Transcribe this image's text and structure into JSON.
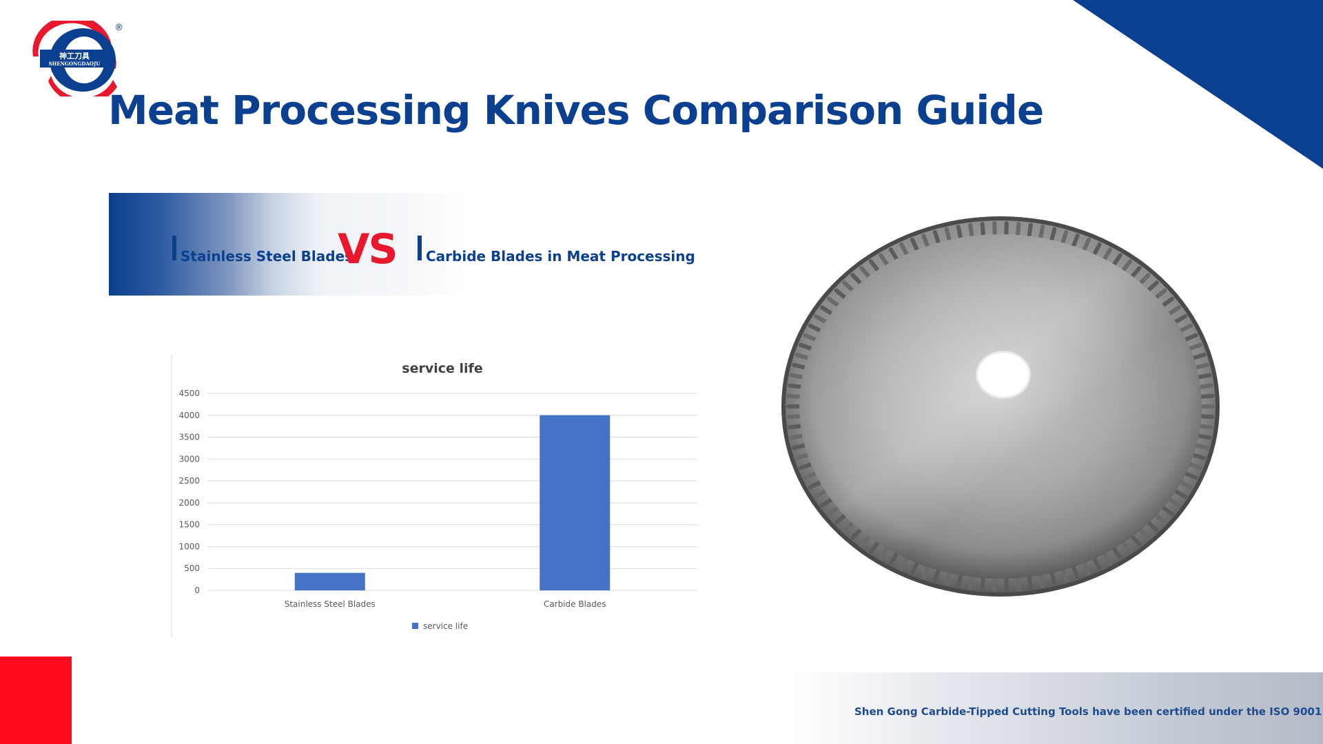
{
  "logo": {
    "chinese": "神工刀具",
    "latin": "SHENGONGDAOJU",
    "registered": "®"
  },
  "page_title": "Meat Processing Knives Comparison Guide",
  "comparison": {
    "left_label": "Stainless Steel Blades",
    "vs": "VS",
    "right_label": "Carbide Blades in Meat Processing"
  },
  "colors": {
    "brand_blue": "#0b3f8f",
    "accent_red": "#e8192c",
    "bar_blue": "#4472c4"
  },
  "chart_data": {
    "type": "bar",
    "title": "service life",
    "categories": [
      "Stainless Steel Blades",
      "Carbide Blades"
    ],
    "series": [
      {
        "name": "service life",
        "values": [
          400,
          4000
        ]
      }
    ],
    "ylim": [
      0,
      4500
    ],
    "yticks": [
      0,
      500,
      1000,
      1500,
      2000,
      2500,
      3000,
      3500,
      4000,
      4500
    ],
    "grid": true,
    "legend": "bottom"
  },
  "footer_text": "Shen Gong Carbide-Tipped Cutting Tools have been certified under the ISO 9001"
}
